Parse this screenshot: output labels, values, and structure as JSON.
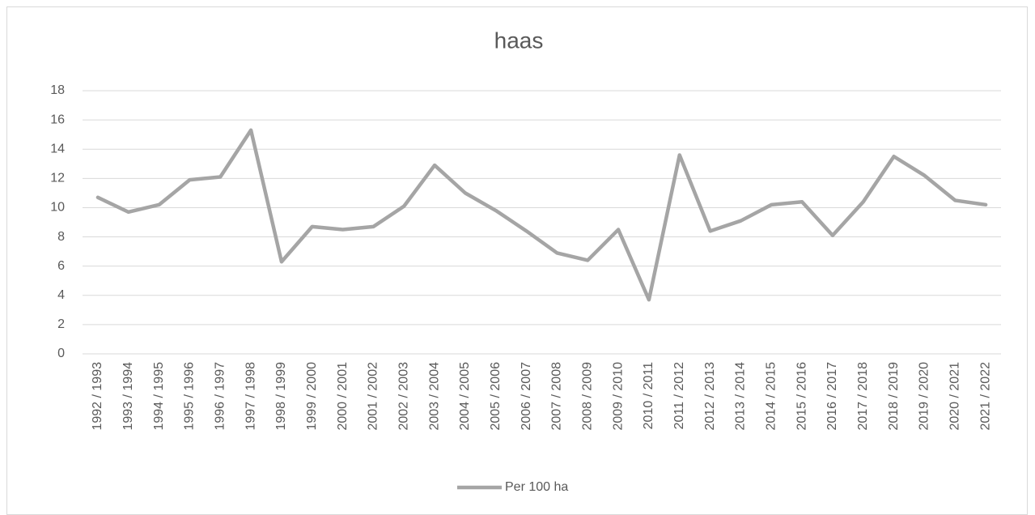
{
  "chart_data": {
    "type": "line",
    "title": "haas",
    "categories": [
      "1992 / 1993",
      "1993 / 1994",
      "1994 / 1995",
      "1995 / 1996",
      "1996 / 1997",
      "1997 / 1998",
      "1998 / 1999",
      "1999 / 2000",
      "2000 / 2001",
      "2001 / 2002",
      "2002 / 2003",
      "2003 / 2004",
      "2004 / 2005",
      "2005 / 2006",
      "2006 / 2007",
      "2007 / 2008",
      "2008 / 2009",
      "2009 / 2010",
      "2010 / 2011",
      "2011 / 2012",
      "2012 / 2013",
      "2013 / 2014",
      "2014 / 2015",
      "2015 / 2016",
      "2016 / 2017",
      "2017 / 2018",
      "2018 / 2019",
      "2019 / 2020",
      "2020 / 2021",
      "2021 / 2022"
    ],
    "series": [
      {
        "name": "Per 100 ha",
        "color": "#a5a5a5",
        "values": [
          10.7,
          9.7,
          10.2,
          11.9,
          12.1,
          15.3,
          6.3,
          8.7,
          8.5,
          8.7,
          10.1,
          12.9,
          11.0,
          9.8,
          8.4,
          6.9,
          6.4,
          8.5,
          3.7,
          13.6,
          8.4,
          9.1,
          10.2,
          10.4,
          8.1,
          10.4,
          13.5,
          12.2,
          10.5,
          10.2
        ]
      }
    ],
    "ylim": [
      0,
      18
    ],
    "yticks": [
      0,
      2,
      4,
      6,
      8,
      10,
      12,
      14,
      16,
      18
    ],
    "grid": true,
    "legend": "bottom"
  }
}
